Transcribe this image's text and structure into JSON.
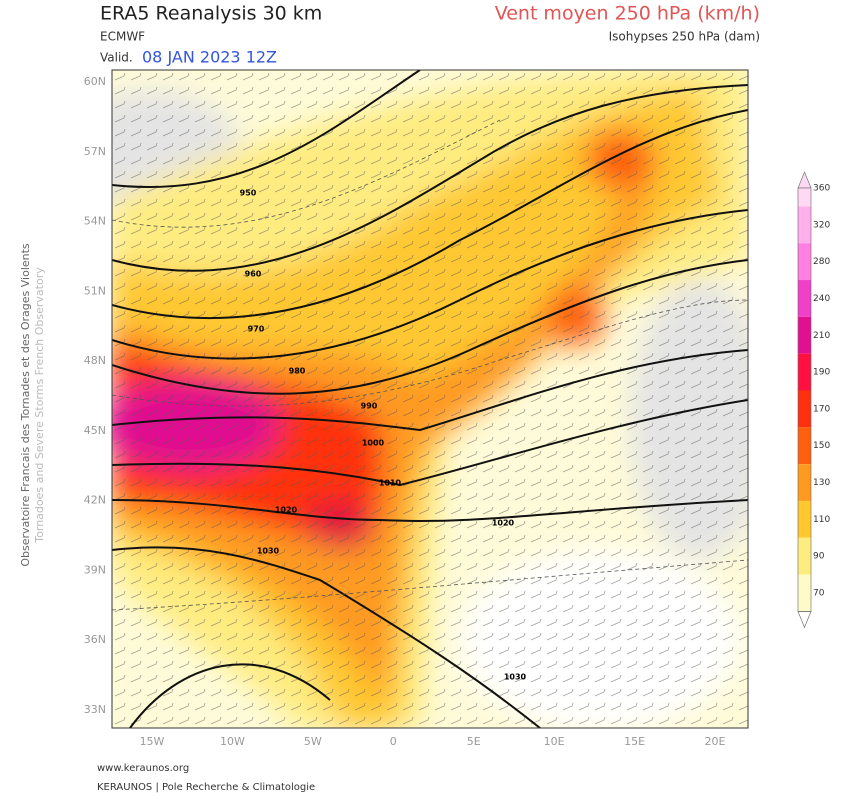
{
  "header": {
    "title": "ERA5 Reanalysis 30 km",
    "subtitle": "ECMWF",
    "valid_prefix": "Valid.",
    "valid_date": "08 JAN 2023 12Z",
    "right_title": "Vent moyen 250 hPa (km/h)",
    "right_subtitle": "Isohypses 250 hPa (dam)"
  },
  "side_text": [
    "Observatoire Francais des Tornades et des Orages Violents",
    "Tornadoes and Severe Storms French Observatory"
  ],
  "map": {
    "lat_labels": [
      "60N",
      "57N",
      "54N",
      "51N",
      "48N",
      "45N",
      "42N",
      "39N",
      "36N",
      "33N"
    ],
    "lon_labels": [
      "15W",
      "10W",
      "5W",
      "0",
      "5E",
      "10E",
      "15E",
      "20E"
    ],
    "contour_labels": [
      950,
      960,
      970,
      980,
      990,
      1000,
      1010,
      1020,
      1020,
      1030,
      1030
    ]
  },
  "colorbar": {
    "levels": [
      360,
      320,
      280,
      240,
      210,
      190,
      170,
      150,
      130,
      110,
      90,
      70
    ],
    "colors": [
      "#ffd8f4",
      "#ffb0ec",
      "#ff80e0",
      "#f040c8",
      "#e01090",
      "#ff1040",
      "#ff3010",
      "#ff6010",
      "#ff9a20",
      "#ffc830",
      "#ffec80",
      "#fffbc8"
    ]
  },
  "footer": [
    "www.keraunos.org",
    "KERAUNOS | Pole Recherche & Climatologie"
  ]
}
